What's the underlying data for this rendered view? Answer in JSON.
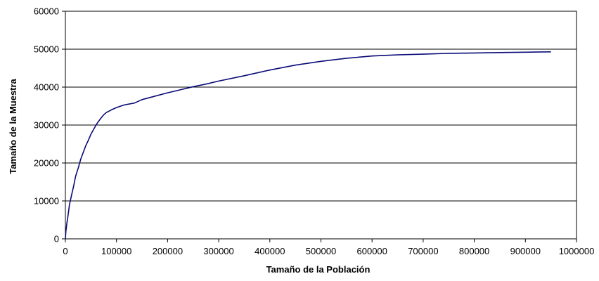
{
  "chart_data": {
    "type": "line",
    "xlabel": "Tamaño de la Población",
    "ylabel": "Tamaño de la Muestra",
    "xlim": [
      0,
      1000000
    ],
    "ylim": [
      0,
      60000
    ],
    "x_ticks": [
      "0",
      "100000",
      "200000",
      "300000",
      "400000",
      "500000",
      "600000",
      "700000",
      "800000",
      "900000",
      "1000000"
    ],
    "y_ticks": [
      "0",
      "10000",
      "20000",
      "30000",
      "40000",
      "50000",
      "60000"
    ],
    "grid": "horizontal",
    "legend": "none",
    "series": [
      {
        "color": "#0a0a78",
        "x": [
          0,
          1000,
          3000,
          5000,
          8000,
          12000,
          16000,
          20000,
          25000,
          30000,
          35000,
          40000,
          45000,
          50000,
          55000,
          60000,
          65000,
          70000,
          75000,
          80000,
          90000,
          100000,
          115000,
          135000,
          150000,
          175000,
          200000,
          225000,
          250000,
          275000,
          300000,
          350000,
          400000,
          450000,
          500000,
          550000,
          600000,
          650000,
          700000,
          750000,
          800000,
          850000,
          900000,
          950000
        ],
        "y": [
          0,
          2000,
          4200,
          6000,
          9000,
          11500,
          13800,
          16500,
          18600,
          21000,
          22800,
          24600,
          26000,
          27600,
          28800,
          30000,
          31000,
          31900,
          32700,
          33300,
          34000,
          34600,
          35300,
          35800,
          36700,
          37600,
          38500,
          39300,
          40100,
          40800,
          41600,
          43000,
          44500,
          45800,
          46800,
          47600,
          48200,
          48500,
          48700,
          48900,
          49000,
          49100,
          49200,
          49300
        ]
      }
    ]
  }
}
